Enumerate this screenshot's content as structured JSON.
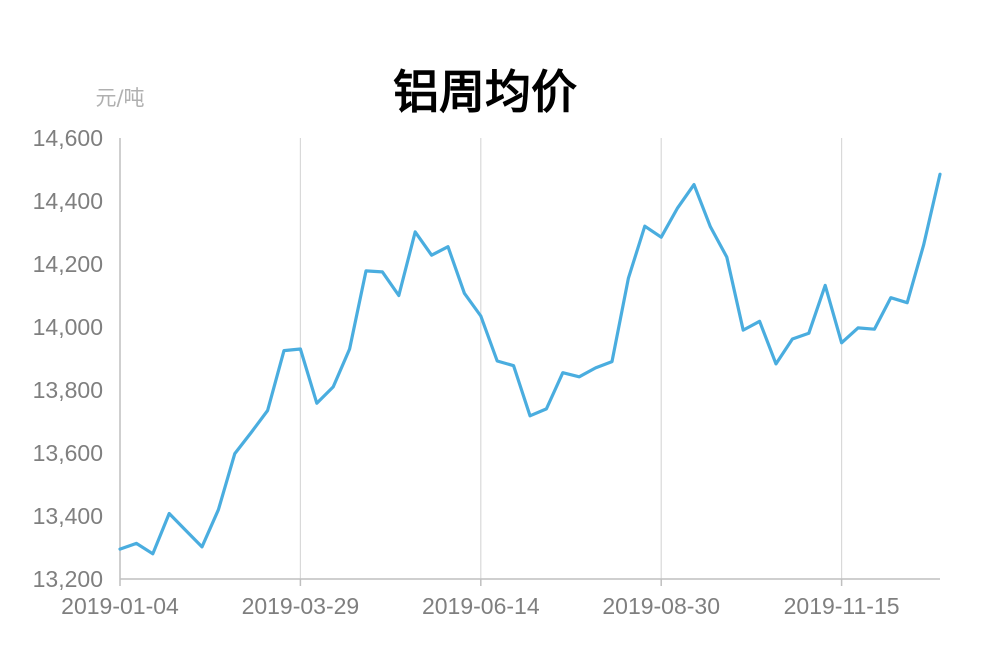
{
  "chart_data": {
    "type": "line",
    "title": "铝周均价",
    "ylabel": "元/吨",
    "xlabel": "",
    "ylim": [
      13200,
      14600
    ],
    "yticks": [
      13200,
      13400,
      13600,
      13800,
      14000,
      14200,
      14400,
      14600
    ],
    "ytick_labels": [
      "13,200",
      "13,400",
      "13,600",
      "13,800",
      "14,000",
      "14,200",
      "14,400",
      "14,600"
    ],
    "xtick_labels": [
      "2019-01-04",
      "2019-03-29",
      "2019-06-14",
      "2019-08-30",
      "2019-11-15"
    ],
    "xtick_indices": [
      0,
      11,
      22,
      33,
      44
    ],
    "grid": "vertical",
    "line_color": "#4aaddf",
    "grid_color": "#d9d9d9",
    "axis_color": "#bfbfbf",
    "series": [
      {
        "values": [
          13295,
          13313,
          13280,
          13408,
          13355,
          13302,
          13420,
          13598,
          13665,
          13735,
          13925,
          13930,
          13758,
          13810,
          13930,
          14178,
          14175,
          14100,
          14302,
          14228,
          14255,
          14107,
          14035,
          13892,
          13877,
          13718,
          13740,
          13855,
          13842,
          13870,
          13890,
          14155,
          14320,
          14285,
          14378,
          14452,
          14318,
          14222,
          13990,
          14018,
          13883,
          13962,
          13980,
          14132,
          13950,
          13997,
          13993,
          14093,
          14077,
          14260,
          14485
        ]
      }
    ]
  }
}
